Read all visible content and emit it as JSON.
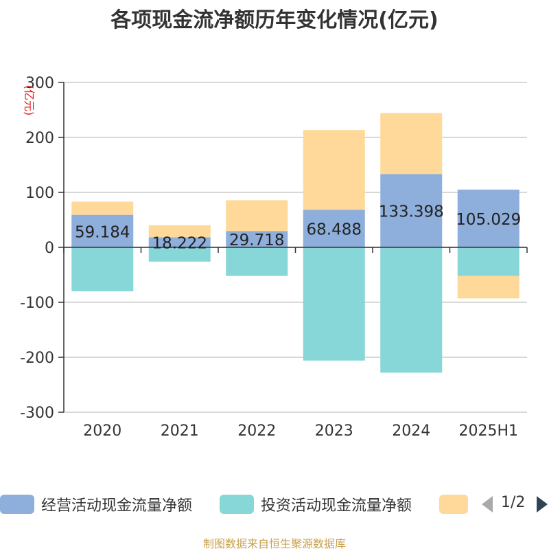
{
  "chart_data": {
    "type": "bar",
    "stacked": true,
    "title": "各项现金流净额历年变化情况(亿元)",
    "ylabel": "(亿元)",
    "ylim": [
      -300,
      300
    ],
    "yticks": [
      "300",
      "200",
      "100",
      "0",
      "-100",
      "-200",
      "-300"
    ],
    "grid": true,
    "categories": [
      "2020",
      "2021",
      "2022",
      "2023",
      "2024",
      "2025H1"
    ],
    "series": [
      {
        "name": "经营活动现金流量净额",
        "values": [
          59.184,
          18.222,
          29.718,
          68.488,
          133.398,
          105.029
        ],
        "labels": [
          "59.184",
          "18.222",
          "29.718",
          "68.488",
          "133.398",
          "105.029"
        ],
        "color": "#8eaedb"
      },
      {
        "name": "投资活动现金流量净额",
        "values": [
          -80,
          -26,
          -52,
          -206,
          -228,
          -52
        ],
        "color": "#87d6d8"
      },
      {
        "name": "",
        "values": [
          24,
          22,
          56,
          145,
          111,
          -41
        ],
        "color": "#fed999"
      }
    ],
    "legend_position": "bottom",
    "pager": "1/2"
  },
  "source": "制图数据来自恒生聚源数据库"
}
